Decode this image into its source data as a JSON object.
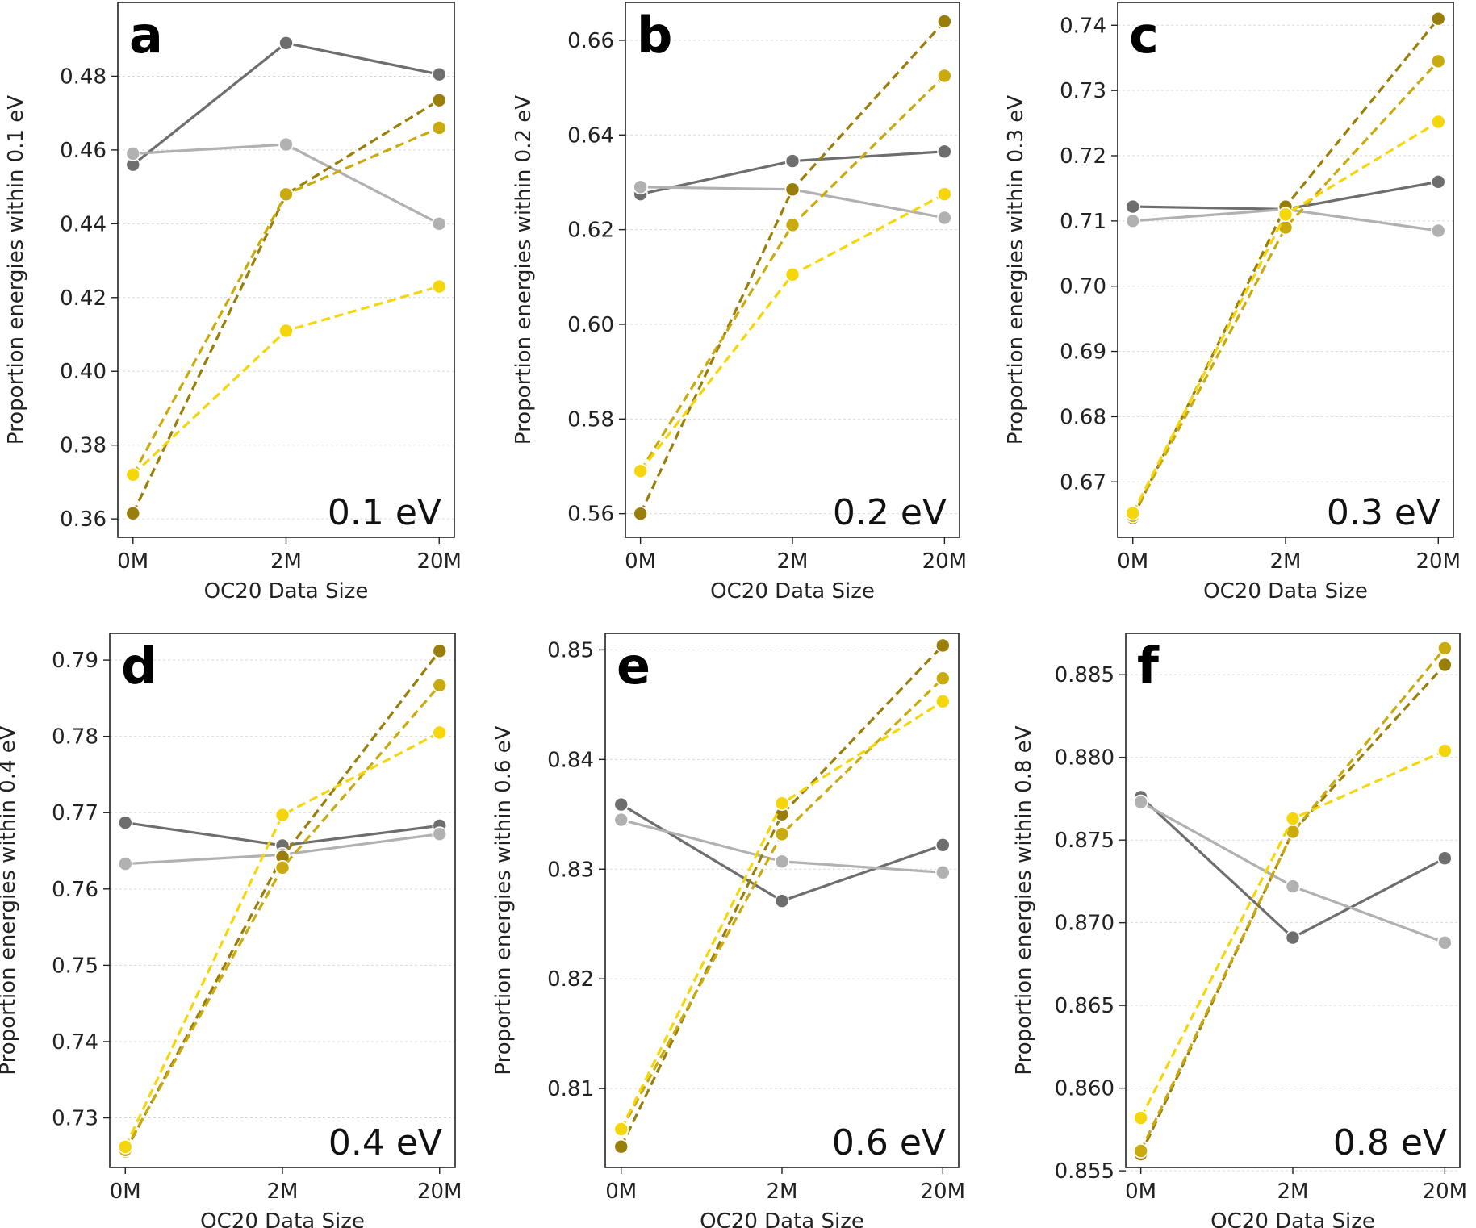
{
  "chart_data": [
    {
      "type": "line",
      "letter": "a",
      "annotation": "0.1 eV",
      "xlabel": "OC20 Data Size",
      "ylabel": "Proportion energies within 0.1 eV",
      "categories": [
        "0M",
        "2M",
        "20M"
      ],
      "ylim": [
        0.355,
        0.5
      ],
      "yticks": [
        0.36,
        0.38,
        0.4,
        0.42,
        0.44,
        0.46,
        0.48
      ],
      "tick_decimals": 2,
      "series": [
        {
          "name": "dark gray solid",
          "color": "#6e6e6e",
          "dashed": false,
          "values": [
            0.456,
            0.489,
            0.4805
          ]
        },
        {
          "name": "light gray solid",
          "color": "#b1b1b1",
          "dashed": false,
          "values": [
            0.459,
            0.4615,
            0.44
          ]
        },
        {
          "name": "olive dashed",
          "color": "#9a7e0a",
          "dashed": true,
          "values": [
            0.3615,
            0.448,
            0.4735
          ]
        },
        {
          "name": "gold dashed",
          "color": "#c9aa0f",
          "dashed": true,
          "values": [
            0.372,
            0.448,
            0.466
          ]
        },
        {
          "name": "yellow dashed",
          "color": "#f5d60a",
          "dashed": true,
          "values": [
            0.372,
            0.411,
            0.423
          ]
        }
      ]
    },
    {
      "type": "line",
      "letter": "b",
      "annotation": "0.2 eV",
      "xlabel": "OC20 Data Size",
      "ylabel": "Proportion energies within 0.2 eV",
      "categories": [
        "0M",
        "2M",
        "20M"
      ],
      "ylim": [
        0.555,
        0.668
      ],
      "yticks": [
        0.56,
        0.58,
        0.6,
        0.62,
        0.64,
        0.66
      ],
      "tick_decimals": 2,
      "series": [
        {
          "name": "dark gray solid",
          "color": "#6e6e6e",
          "dashed": false,
          "values": [
            0.6275,
            0.6345,
            0.6365
          ]
        },
        {
          "name": "light gray solid",
          "color": "#b1b1b1",
          "dashed": false,
          "values": [
            0.629,
            0.6285,
            0.6225
          ]
        },
        {
          "name": "olive dashed",
          "color": "#9a7e0a",
          "dashed": true,
          "values": [
            0.56,
            0.6285,
            0.664
          ]
        },
        {
          "name": "gold dashed",
          "color": "#c9aa0f",
          "dashed": true,
          "values": [
            0.569,
            0.621,
            0.6525
          ]
        },
        {
          "name": "yellow dashed",
          "color": "#f5d60a",
          "dashed": true,
          "values": [
            0.569,
            0.6105,
            0.6275
          ]
        }
      ]
    },
    {
      "type": "line",
      "letter": "c",
      "annotation": "0.3 eV",
      "xlabel": "OC20 Data Size",
      "ylabel": "Proportion energies within 0.3 eV",
      "categories": [
        "0M",
        "2M",
        "20M"
      ],
      "ylim": [
        0.6615,
        0.7435
      ],
      "yticks": [
        0.67,
        0.68,
        0.69,
        0.7,
        0.71,
        0.72,
        0.73,
        0.74
      ],
      "tick_decimals": 2,
      "series": [
        {
          "name": "dark gray solid",
          "color": "#6e6e6e",
          "dashed": false,
          "values": [
            0.7122,
            0.7118,
            0.716
          ]
        },
        {
          "name": "light gray solid",
          "color": "#b1b1b1",
          "dashed": false,
          "values": [
            0.71,
            0.7118,
            0.7085
          ]
        },
        {
          "name": "olive dashed",
          "color": "#9a7e0a",
          "dashed": true,
          "values": [
            0.6645,
            0.7122,
            0.741
          ]
        },
        {
          "name": "gold dashed",
          "color": "#c9aa0f",
          "dashed": true,
          "values": [
            0.6648,
            0.709,
            0.7345
          ]
        },
        {
          "name": "yellow dashed",
          "color": "#f5d60a",
          "dashed": true,
          "values": [
            0.6652,
            0.711,
            0.7252
          ]
        }
      ]
    },
    {
      "type": "line",
      "letter": "d",
      "annotation": "0.4 eV",
      "xlabel": "OC20 Data Size",
      "ylabel": "Proportion energies within 0.4 eV",
      "categories": [
        "0M",
        "2M",
        "20M"
      ],
      "ylim": [
        0.7235,
        0.7935
      ],
      "yticks": [
        0.73,
        0.74,
        0.75,
        0.76,
        0.77,
        0.78,
        0.79
      ],
      "tick_decimals": 2,
      "series": [
        {
          "name": "dark gray solid",
          "color": "#6e6e6e",
          "dashed": false,
          "values": [
            0.7687,
            0.7657,
            0.7683
          ]
        },
        {
          "name": "light gray solid",
          "color": "#b1b1b1",
          "dashed": false,
          "values": [
            0.7633,
            0.7645,
            0.7672
          ]
        },
        {
          "name": "olive dashed",
          "color": "#9a7e0a",
          "dashed": true,
          "values": [
            0.7256,
            0.7642,
            0.7912
          ]
        },
        {
          "name": "gold dashed",
          "color": "#c9aa0f",
          "dashed": true,
          "values": [
            0.7258,
            0.7628,
            0.7867
          ]
        },
        {
          "name": "yellow dashed",
          "color": "#f5d60a",
          "dashed": true,
          "values": [
            0.7262,
            0.7697,
            0.7805
          ]
        }
      ]
    },
    {
      "type": "line",
      "letter": "e",
      "annotation": "0.6 eV",
      "xlabel": "OC20 Data Size",
      "ylabel": "Proportion energies within 0.6 eV",
      "categories": [
        "0M",
        "2M",
        "20M"
      ],
      "ylim": [
        0.8028,
        0.8515
      ],
      "yticks": [
        0.81,
        0.82,
        0.83,
        0.84,
        0.85
      ],
      "tick_decimals": 2,
      "series": [
        {
          "name": "dark gray solid",
          "color": "#6e6e6e",
          "dashed": false,
          "values": [
            0.8359,
            0.8271,
            0.8322
          ]
        },
        {
          "name": "light gray solid",
          "color": "#b1b1b1",
          "dashed": false,
          "values": [
            0.8345,
            0.8307,
            0.8297
          ]
        },
        {
          "name": "olive dashed",
          "color": "#9a7e0a",
          "dashed": true,
          "values": [
            0.8047,
            0.835,
            0.8504
          ]
        },
        {
          "name": "gold dashed",
          "color": "#c9aa0f",
          "dashed": true,
          "values": [
            0.8062,
            0.8332,
            0.8474
          ]
        },
        {
          "name": "yellow dashed",
          "color": "#f5d60a",
          "dashed": true,
          "values": [
            0.8063,
            0.836,
            0.8453
          ]
        }
      ]
    },
    {
      "type": "line",
      "letter": "f",
      "annotation": "0.8 eV",
      "xlabel": "OC20 Data Size",
      "ylabel": "Proportion energies within 0.8 eV",
      "categories": [
        "0M",
        "2M",
        "20M"
      ],
      "ylim": [
        0.8552,
        0.8875
      ],
      "yticks": [
        0.855,
        0.86,
        0.865,
        0.87,
        0.875,
        0.88,
        0.885
      ],
      "tick_decimals": 3,
      "series": [
        {
          "name": "dark gray solid",
          "color": "#6e6e6e",
          "dashed": false,
          "values": [
            0.8776,
            0.8691,
            0.8739
          ]
        },
        {
          "name": "light gray solid",
          "color": "#b1b1b1",
          "dashed": false,
          "values": [
            0.8773,
            0.8722,
            0.8688
          ]
        },
        {
          "name": "olive dashed",
          "color": "#9a7e0a",
          "dashed": true,
          "values": [
            0.856,
            0.8755,
            0.8856
          ]
        },
        {
          "name": "gold dashed",
          "color": "#c9aa0f",
          "dashed": true,
          "values": [
            0.8562,
            0.8755,
            0.8866
          ]
        },
        {
          "name": "yellow dashed",
          "color": "#f5d60a",
          "dashed": true,
          "values": [
            0.8582,
            0.8763,
            0.8804
          ]
        }
      ]
    }
  ]
}
